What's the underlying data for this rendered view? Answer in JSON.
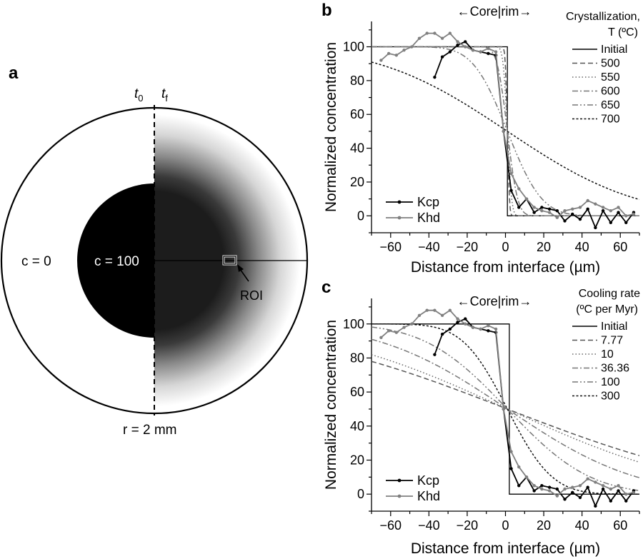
{
  "panel_a": {
    "letter": "a",
    "t0_main": "t",
    "t0_sub": "0",
    "tf_main": "t",
    "tf_sub": "f",
    "c_outer": "c = 0",
    "c_inner": "c = 100",
    "roi": "ROI",
    "radius": "r = 2 mm"
  },
  "chart_data": [
    {
      "panel": "b",
      "type": "line",
      "core_rim_label": "←Core|rim→",
      "legend_title_line1": "Crystallization,",
      "legend_title_line2": "T (ºC)",
      "xlabel": "Distance from interface (µm)",
      "ylabel": "Normalized concentration",
      "xlim": [
        -70,
        70
      ],
      "ylim": [
        -10,
        115
      ],
      "xticks": [
        -60,
        -40,
        -20,
        0,
        20,
        40,
        60
      ],
      "yticks": [
        0,
        20,
        40,
        60,
        80,
        100
      ],
      "grid": false,
      "model_legend_position": "top-right",
      "data_legend_position": "bottom-left",
      "models": [
        {
          "name": "Initial",
          "dash": "solid",
          "color": "#000000",
          "kind": "step",
          "offset": 1
        },
        {
          "name": "500",
          "dash": "dashed",
          "color": "#555555",
          "kind": "erf",
          "width": 1.2
        },
        {
          "name": "550",
          "dash": "dotted",
          "color": "#666666",
          "kind": "erf",
          "width": 2.5
        },
        {
          "name": "600",
          "dash": "dashdot",
          "color": "#777777",
          "kind": "erf",
          "width": 6
        },
        {
          "name": "650",
          "dash": "dashdotdot",
          "color": "#777777",
          "kind": "erf",
          "width": 20
        },
        {
          "name": "700",
          "dash": "shortdash",
          "color": "#111111",
          "kind": "erf",
          "width": 75
        }
      ],
      "data_series": [
        {
          "name": "Kcp",
          "color": "#000000",
          "x": [
            -37,
            -33,
            -29,
            -25,
            -21,
            -17,
            -13,
            -9,
            -5,
            -1,
            3,
            7,
            11,
            15,
            19,
            23,
            27,
            31,
            35,
            39,
            43,
            47,
            51,
            55,
            59,
            63,
            67
          ],
          "y": [
            82,
            94,
            97,
            101,
            103,
            98,
            97,
            96,
            95,
            50,
            15,
            5,
            10,
            2,
            5,
            4,
            3,
            -3,
            1,
            -2,
            4,
            -7,
            3,
            -4,
            2,
            -4,
            2
          ]
        },
        {
          "name": "Khd",
          "color": "#808080",
          "x": [
            -65,
            -61,
            -57,
            -53,
            -49,
            -45,
            -41,
            -37,
            -33,
            -29,
            -25,
            -21,
            -17,
            -13,
            -9,
            -5,
            -1,
            3,
            7,
            11,
            15,
            19,
            23,
            27,
            31,
            35,
            39,
            43,
            47,
            51,
            55,
            59,
            63,
            67
          ],
          "y": [
            92,
            96,
            95,
            98,
            100,
            105,
            108,
            108,
            105,
            108,
            103,
            100,
            98,
            97,
            99,
            97,
            50,
            25,
            16,
            10,
            5,
            3,
            2,
            -1,
            3,
            4,
            5,
            9,
            7,
            5,
            3,
            5,
            0,
            1
          ]
        }
      ]
    },
    {
      "panel": "c",
      "type": "line",
      "core_rim_label": "←Core|rim→",
      "legend_title_line1": "Cooling rate",
      "legend_title_line2": "(ºC per Myr)",
      "xlabel": "Distance from interface (µm)",
      "ylabel": "Normalized concentration",
      "xlim": [
        -70,
        70
      ],
      "ylim": [
        -10,
        115
      ],
      "xticks": [
        -60,
        -40,
        -20,
        0,
        20,
        40,
        60
      ],
      "yticks": [
        0,
        20,
        40,
        60,
        80,
        100
      ],
      "grid": false,
      "model_legend_position": "top-right",
      "data_legend_position": "bottom-left",
      "models": [
        {
          "name": "Initial",
          "dash": "solid",
          "color": "#000000",
          "kind": "step",
          "offset": 2
        },
        {
          "name": "7.77",
          "dash": "dashed",
          "color": "#555555",
          "kind": "erf",
          "width": 130
        },
        {
          "name": "10",
          "dash": "dotted",
          "color": "#666666",
          "kind": "erf",
          "width": 110
        },
        {
          "name": "36.36",
          "dash": "dashdot",
          "color": "#777777",
          "kind": "erf",
          "width": 75
        },
        {
          "name": "100",
          "dash": "dashdotdot",
          "color": "#777777",
          "kind": "erf",
          "width": 48
        },
        {
          "name": "300",
          "dash": "shortdash",
          "color": "#111111",
          "kind": "erf",
          "width": 26
        }
      ],
      "data_series": [
        {
          "name": "Kcp",
          "color": "#000000",
          "x": [
            -37,
            -33,
            -29,
            -25,
            -21,
            -17,
            -13,
            -9,
            -5,
            -1,
            3,
            7,
            11,
            15,
            19,
            23,
            27,
            31,
            35,
            39,
            43,
            47,
            51,
            55,
            59,
            63,
            67
          ],
          "y": [
            82,
            94,
            97,
            101,
            103,
            98,
            97,
            96,
            95,
            50,
            15,
            5,
            10,
            2,
            5,
            4,
            3,
            -3,
            1,
            -2,
            4,
            -7,
            3,
            -4,
            2,
            -4,
            2
          ]
        },
        {
          "name": "Khd",
          "color": "#808080",
          "x": [
            -65,
            -61,
            -57,
            -53,
            -49,
            -45,
            -41,
            -37,
            -33,
            -29,
            -25,
            -21,
            -17,
            -13,
            -9,
            -5,
            -1,
            3,
            7,
            11,
            15,
            19,
            23,
            27,
            31,
            35,
            39,
            43,
            47,
            51,
            55,
            59,
            63,
            67
          ],
          "y": [
            92,
            96,
            95,
            98,
            100,
            105,
            108,
            108,
            105,
            108,
            103,
            100,
            98,
            97,
            99,
            97,
            50,
            25,
            16,
            10,
            5,
            3,
            2,
            -1,
            3,
            4,
            5,
            9,
            7,
            5,
            3,
            5,
            0,
            1
          ]
        }
      ]
    }
  ]
}
